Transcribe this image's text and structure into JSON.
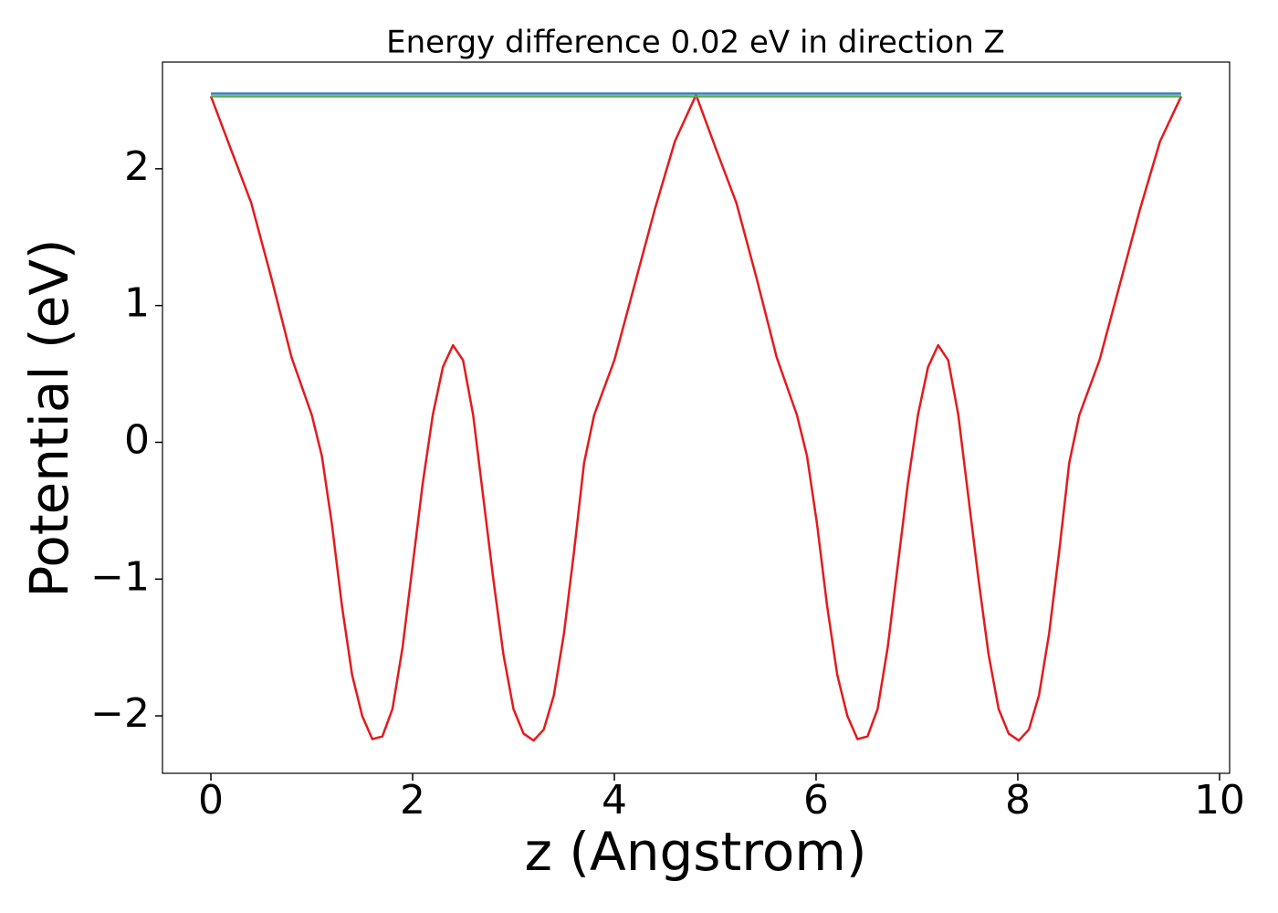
{
  "chart_data": {
    "type": "line",
    "title": "Energy difference 0.02 eV in direction Z",
    "xlabel": "z (Angstrom)",
    "ylabel": "Potential (eV)",
    "xlim": [
      -0.48,
      10.1
    ],
    "ylim": [
      -2.42,
      2.78
    ],
    "xticks": [
      0,
      2,
      4,
      6,
      8,
      10
    ],
    "yticks": [
      {
        "value": -2,
        "label": "−2"
      },
      {
        "value": -1,
        "label": "−1"
      },
      0,
      1,
      2
    ],
    "series": [
      {
        "color": "#e41a1c",
        "x": [
          0,
          0.2,
          0.4,
          0.6,
          0.8,
          1.0,
          1.1,
          1.2,
          1.3,
          1.4,
          1.5,
          1.6,
          1.7,
          1.8,
          1.9,
          2.0,
          2.1,
          2.2,
          2.3,
          2.4,
          2.5,
          2.6,
          2.7,
          2.8,
          2.9,
          3.0,
          3.1,
          3.2,
          3.3,
          3.4,
          3.5,
          3.6,
          3.7,
          3.8,
          4.0,
          4.2,
          4.4,
          4.6,
          4.81,
          5.01,
          5.21,
          5.41,
          5.61,
          5.81,
          5.91,
          6.01,
          6.11,
          6.21,
          6.31,
          6.41,
          6.51,
          6.61,
          6.71,
          6.81,
          6.91,
          7.01,
          7.11,
          7.21,
          7.31,
          7.41,
          7.51,
          7.61,
          7.71,
          7.81,
          7.91,
          8.01,
          8.11,
          8.21,
          8.31,
          8.41,
          8.51,
          8.61,
          8.81,
          9.01,
          9.21,
          9.41,
          9.62
        ],
        "values": [
          2.53,
          2.14,
          1.75,
          1.2,
          0.62,
          0.2,
          -0.1,
          -0.6,
          -1.2,
          -1.7,
          -2.0,
          -2.17,
          -2.15,
          -1.95,
          -1.5,
          -0.9,
          -0.3,
          0.2,
          0.55,
          0.71,
          0.6,
          0.2,
          -0.4,
          -1.0,
          -1.55,
          -1.95,
          -2.13,
          -2.18,
          -2.1,
          -1.85,
          -1.4,
          -0.8,
          -0.15,
          0.2,
          0.6,
          1.15,
          1.7,
          2.2,
          2.54,
          2.14,
          1.75,
          1.2,
          0.62,
          0.2,
          -0.1,
          -0.6,
          -1.2,
          -1.7,
          -2.0,
          -2.17,
          -2.15,
          -1.95,
          -1.5,
          -0.9,
          -0.3,
          0.2,
          0.55,
          0.71,
          0.6,
          0.2,
          -0.4,
          -1.0,
          -1.55,
          -1.95,
          -2.13,
          -2.18,
          -2.1,
          -1.85,
          -1.4,
          -0.8,
          -0.15,
          0.2,
          0.6,
          1.15,
          1.7,
          2.2,
          2.53
        ]
      },
      {
        "color": "#377eb8",
        "x": [
          0,
          9.62
        ],
        "values": [
          2.55,
          2.55
        ]
      },
      {
        "color": "#4daf4a",
        "x": [
          0,
          9.62
        ],
        "values": [
          2.53,
          2.53
        ]
      }
    ]
  }
}
